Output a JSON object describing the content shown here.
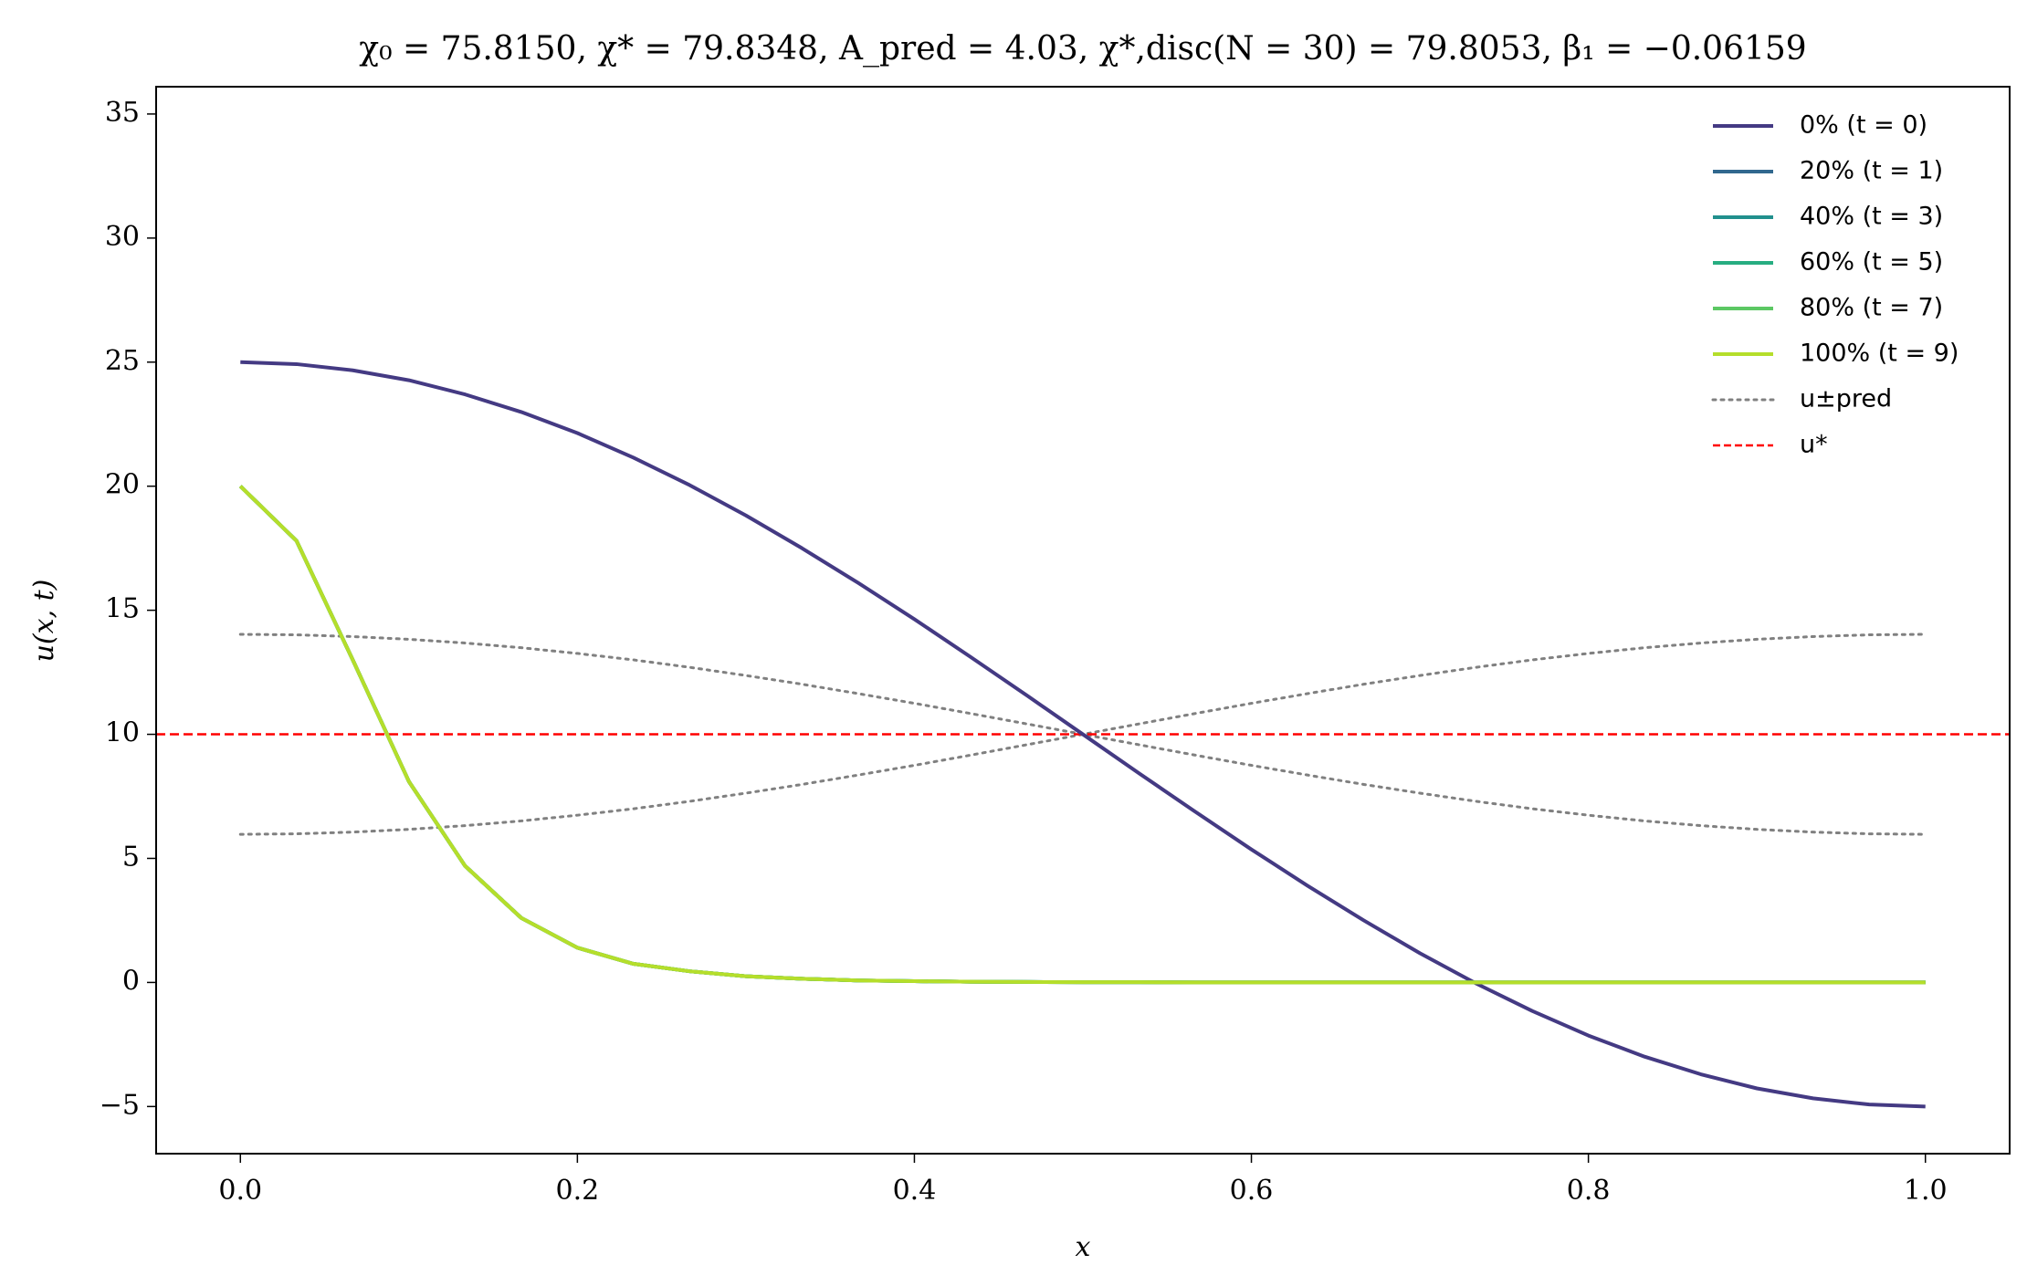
{
  "chart_data": {
    "type": "line",
    "title": "χ₀ = 75.8150,  χ* = 79.8348,  A_pred = 4.03,  χ*,disc(N = 30) = 79.8053,  β₁ = −0.06159",
    "x_label": "x",
    "y_label": "u(x, t)",
    "x": [
      0,
      0.0333,
      0.0667,
      0.1,
      0.1333,
      0.1667,
      0.2,
      0.2333,
      0.2667,
      0.3,
      0.3333,
      0.3667,
      0.4,
      0.4333,
      0.4667,
      0.5,
      0.5333,
      0.5667,
      0.6,
      0.6333,
      0.6667,
      0.7,
      0.7333,
      0.7667,
      0.8,
      0.8333,
      0.8667,
      0.9,
      0.9333,
      0.9667,
      1
    ],
    "series": [
      {
        "name": "0% (t = 0)",
        "color": "#443a83",
        "values": [
          25,
          24.92,
          24.67,
          24.27,
          23.7,
          22.99,
          22.14,
          21.15,
          20.04,
          18.82,
          17.5,
          16.1,
          14.64,
          13.12,
          11.57,
          10,
          8.43,
          6.88,
          5.36,
          3.9,
          2.5,
          1.18,
          -0.04,
          -1.15,
          -2.14,
          -2.99,
          -3.7,
          -4.27,
          -4.67,
          -4.92,
          -5
        ]
      },
      {
        "name": "20% (t = 1)",
        "color": "#31688e",
        "values": [
          20,
          17.8,
          13.0,
          8.1,
          4.7,
          2.6,
          1.4,
          0.75,
          0.45,
          0.25,
          0.15,
          0.08,
          0.05,
          0.03,
          0.02,
          0.01,
          0.01,
          0,
          0,
          0,
          0,
          0,
          0,
          0,
          0,
          0,
          0,
          0,
          0,
          0,
          0
        ]
      },
      {
        "name": "40% (t = 3)",
        "color": "#21908d",
        "values": [
          20,
          17.8,
          13.0,
          8.1,
          4.7,
          2.6,
          1.4,
          0.75,
          0.45,
          0.25,
          0.15,
          0.08,
          0.05,
          0.03,
          0.02,
          0.01,
          0.01,
          0,
          0,
          0,
          0,
          0,
          0,
          0,
          0,
          0,
          0,
          0,
          0,
          0,
          0
        ]
      },
      {
        "name": "60% (t = 5)",
        "color": "#27ad81",
        "values": [
          20,
          17.8,
          13.0,
          8.1,
          4.7,
          2.6,
          1.4,
          0.75,
          0.45,
          0.25,
          0.15,
          0.08,
          0.05,
          0.03,
          0.02,
          0.01,
          0.01,
          0,
          0,
          0,
          0,
          0,
          0,
          0,
          0,
          0,
          0,
          0,
          0,
          0,
          0
        ]
      },
      {
        "name": "80% (t = 7)",
        "color": "#5cc863",
        "values": [
          20,
          17.8,
          13.0,
          8.1,
          4.7,
          2.6,
          1.4,
          0.75,
          0.45,
          0.25,
          0.15,
          0.08,
          0.05,
          0.03,
          0.02,
          0.01,
          0.01,
          0,
          0,
          0,
          0,
          0,
          0,
          0,
          0,
          0,
          0,
          0,
          0,
          0,
          0
        ]
      },
      {
        "name": "100% (t = 9)",
        "color": "#b5de2b",
        "values": [
          20,
          17.8,
          13.0,
          8.1,
          4.7,
          2.6,
          1.4,
          0.75,
          0.45,
          0.25,
          0.15,
          0.08,
          0.05,
          0.03,
          0.02,
          0.01,
          0.01,
          0,
          0,
          0,
          0,
          0,
          0,
          0,
          0,
          0,
          0,
          0,
          0,
          0,
          0
        ]
      }
    ],
    "bounds": {
      "name": "u±pred",
      "color": "#808080",
      "upper": [
        14.03,
        14.01,
        13.94,
        13.83,
        13.68,
        13.49,
        13.26,
        13.0,
        12.7,
        12.37,
        12.02,
        11.64,
        11.25,
        10.84,
        10.42,
        10,
        9.58,
        9.16,
        8.75,
        8.36,
        7.98,
        7.63,
        7.3,
        7.0,
        6.74,
        6.51,
        6.32,
        6.17,
        6.06,
        5.99,
        5.97
      ],
      "lower": [
        5.97,
        5.99,
        6.06,
        6.17,
        6.32,
        6.51,
        6.74,
        7.0,
        7.3,
        7.63,
        7.98,
        8.36,
        8.75,
        9.16,
        9.58,
        10,
        10.42,
        10.84,
        11.25,
        11.64,
        12.02,
        12.37,
        12.7,
        13.0,
        13.26,
        13.49,
        13.68,
        13.83,
        13.94,
        14.01,
        14.03
      ]
    },
    "reference_line": {
      "name": "u*",
      "value": 10,
      "color": "#ff0000"
    },
    "xlim": [
      -0.05,
      1.05
    ],
    "ylim": [
      -6.9,
      36.1
    ],
    "xticks": [
      {
        "value": 0,
        "label": "0.0"
      },
      0.2,
      0.4,
      0.6,
      0.8,
      {
        "value": 1,
        "label": "1.0"
      }
    ],
    "yticks": [
      {
        "value": -5,
        "label": "−5"
      },
      0,
      5,
      10,
      15,
      20,
      25,
      30,
      35
    ],
    "legend": "upper right",
    "grid": false
  }
}
